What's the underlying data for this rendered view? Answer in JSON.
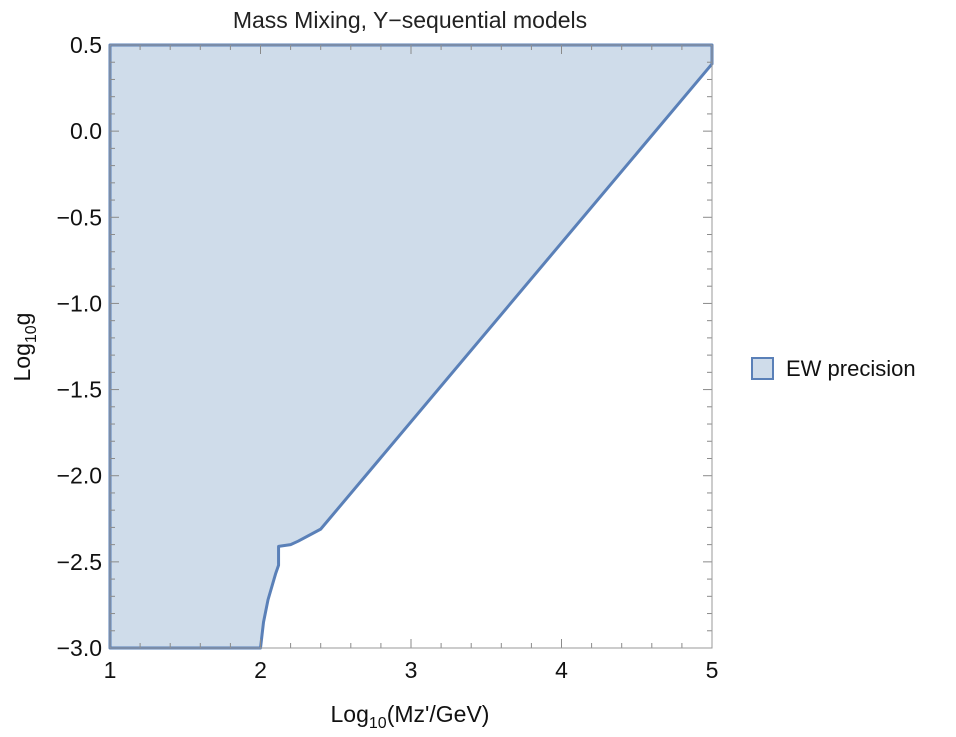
{
  "chart_data": {
    "type": "area",
    "title": "Mass Mixing, Y−sequential models",
    "xlabel": {
      "base": "Log",
      "sub": "10",
      "rest": "(Mz'/GeV)"
    },
    "ylabel": {
      "base": "Log",
      "sub": "10",
      "rest": "g"
    },
    "xlim": [
      1,
      5
    ],
    "ylim": [
      -3.0,
      0.5
    ],
    "x_ticks": [
      1,
      2,
      3,
      4,
      5
    ],
    "x_tick_labels": [
      "1",
      "2",
      "3",
      "4",
      "5"
    ],
    "y_ticks": [
      0.5,
      0.0,
      -0.5,
      -1.0,
      -1.5,
      -2.0,
      -2.5,
      -3.0
    ],
    "y_tick_labels": [
      "0.5",
      "0.0",
      "−0.5",
      "−1.0",
      "−1.5",
      "−2.0",
      "−2.5",
      "−3.0"
    ],
    "grid": false,
    "legend_position": "right",
    "series": [
      {
        "name": "EW precision",
        "fill_color": "#cfdcea",
        "line_color": "#5a80b8",
        "boundary": [
          {
            "x": 1.0,
            "y": 0.5
          },
          {
            "x": 5.0,
            "y": 0.5
          },
          {
            "x": 5.0,
            "y": 0.39
          },
          {
            "x": 2.4,
            "y": -2.31
          },
          {
            "x": 2.25,
            "y": -2.38
          },
          {
            "x": 2.2,
            "y": -2.4
          },
          {
            "x": 2.16,
            "y": -2.405
          },
          {
            "x": 2.12,
            "y": -2.41
          },
          {
            "x": 2.12,
            "y": -2.52
          },
          {
            "x": 2.1,
            "y": -2.57
          },
          {
            "x": 2.05,
            "y": -2.72
          },
          {
            "x": 2.02,
            "y": -2.85
          },
          {
            "x": 2.0,
            "y": -3.0
          },
          {
            "x": 1.0,
            "y": -3.0
          }
        ]
      }
    ]
  }
}
